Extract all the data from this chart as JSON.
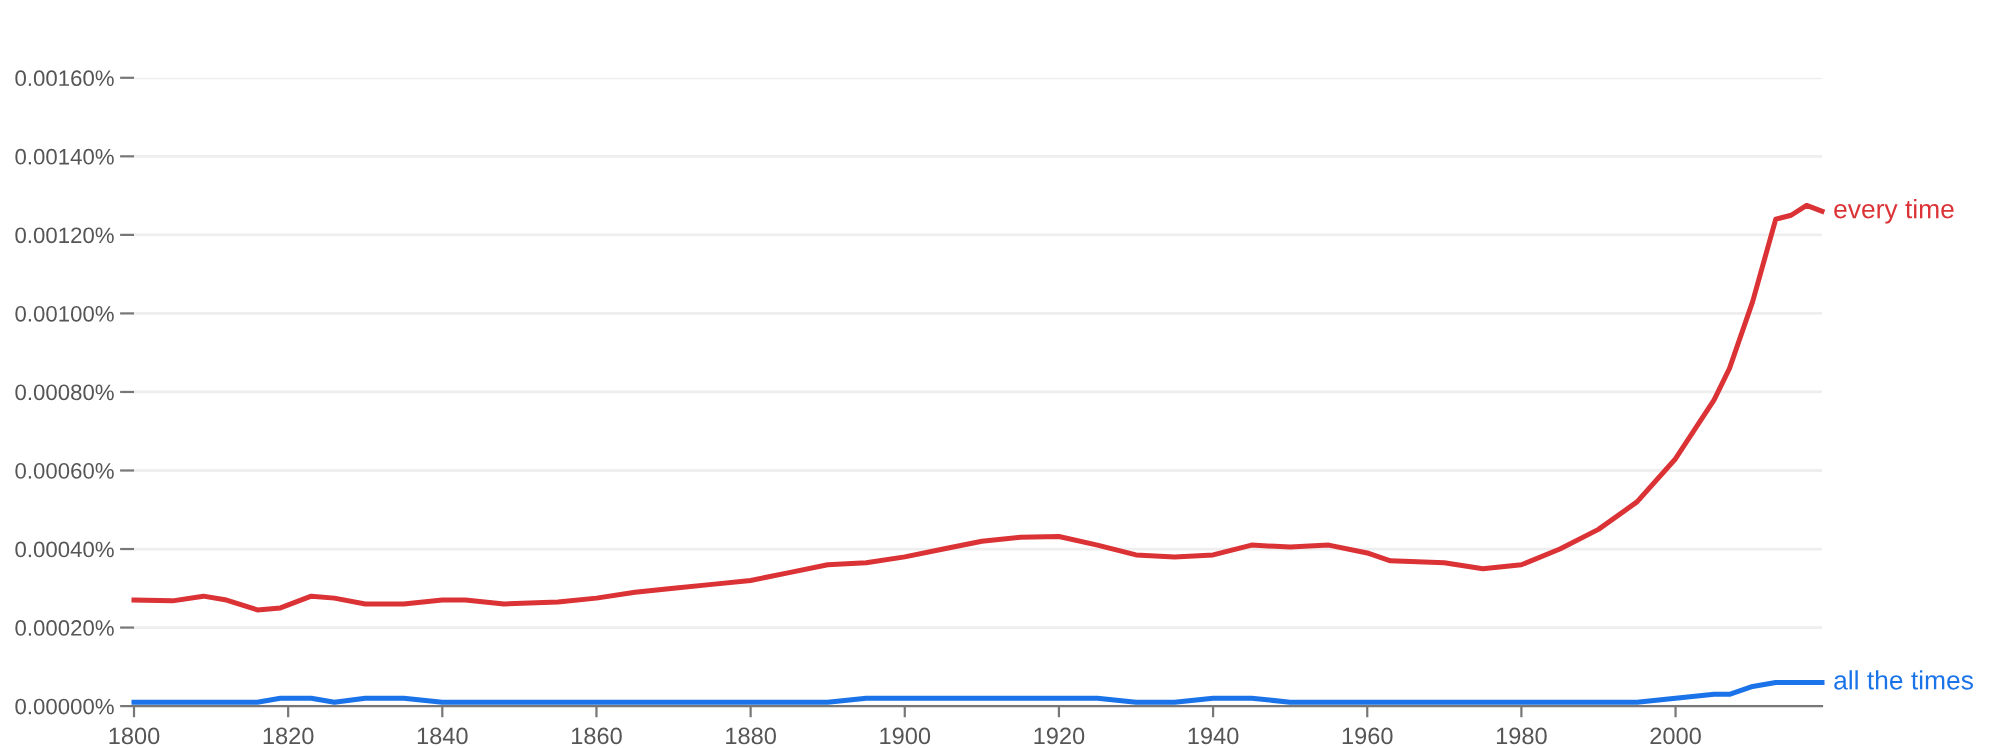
{
  "chart_data": {
    "type": "line",
    "x": [
      1800,
      1805,
      1809,
      1812,
      1816,
      1819,
      1823,
      1826,
      1830,
      1835,
      1840,
      1843,
      1848,
      1855,
      1860,
      1865,
      1870,
      1875,
      1880,
      1885,
      1890,
      1895,
      1900,
      1905,
      1910,
      1915,
      1920,
      1925,
      1930,
      1935,
      1940,
      1945,
      1950,
      1955,
      1960,
      1963,
      1970,
      1975,
      1980,
      1985,
      1990,
      1995,
      2000,
      2005,
      2007,
      2010,
      2013,
      2015,
      2017,
      2019
    ],
    "series": [
      {
        "name": "every time",
        "color": "#db3236",
        "values": [
          0.00027,
          0.000268,
          0.00028,
          0.00027,
          0.000245,
          0.00025,
          0.00028,
          0.000275,
          0.00026,
          0.00026,
          0.00027,
          0.00027,
          0.00026,
          0.000265,
          0.000275,
          0.00029,
          0.0003,
          0.00031,
          0.00032,
          0.00034,
          0.00036,
          0.000365,
          0.00038,
          0.0004,
          0.00042,
          0.00043,
          0.000432,
          0.00041,
          0.000385,
          0.00038,
          0.000385,
          0.00041,
          0.000405,
          0.00041,
          0.00039,
          0.00037,
          0.000365,
          0.00035,
          0.00036,
          0.0004,
          0.00045,
          0.00052,
          0.00063,
          0.00078,
          0.00086,
          0.00103,
          0.00124,
          0.00125,
          0.001275,
          0.00126
        ]
      },
      {
        "name": "all the times",
        "color": "#1a73e8",
        "values": [
          1e-05,
          1e-05,
          1e-05,
          1e-05,
          1e-05,
          2e-05,
          2e-05,
          1e-05,
          2e-05,
          2e-05,
          1e-05,
          1e-05,
          1e-05,
          1e-05,
          1e-05,
          1e-05,
          1e-05,
          1e-05,
          1e-05,
          1e-05,
          1e-05,
          2e-05,
          2e-05,
          2e-05,
          2e-05,
          2e-05,
          2e-05,
          2e-05,
          1e-05,
          1e-05,
          2e-05,
          2e-05,
          1e-05,
          1e-05,
          1e-05,
          1e-05,
          1e-05,
          1e-05,
          1e-05,
          1e-05,
          1e-05,
          1e-05,
          2e-05,
          3e-05,
          3e-05,
          5e-05,
          6e-05,
          6e-05,
          6e-05,
          6e-05
        ]
      }
    ],
    "xlim": [
      1800,
      2019
    ],
    "xticks": [
      1800,
      1820,
      1840,
      1860,
      1880,
      1900,
      1920,
      1940,
      1960,
      1980,
      2000
    ],
    "ylim": [
      0,
      0.0016
    ],
    "yticks": [
      {
        "value": 0,
        "label": "0.00000%"
      },
      {
        "value": 0.0002,
        "label": "0.00020%"
      },
      {
        "value": 0.0004,
        "label": "0.00040%"
      },
      {
        "value": 0.0006,
        "label": "0.00060%"
      },
      {
        "value": 0.0008,
        "label": "0.00080%"
      },
      {
        "value": 0.001,
        "label": "0.00100%"
      },
      {
        "value": 0.0012,
        "label": "0.00120%"
      },
      {
        "value": 0.0014,
        "label": "0.00140%"
      },
      {
        "value": 0.0016,
        "label": "0.00160%"
      }
    ],
    "grid": "y",
    "legend": false,
    "line_style": "solid",
    "marker": "none"
  }
}
